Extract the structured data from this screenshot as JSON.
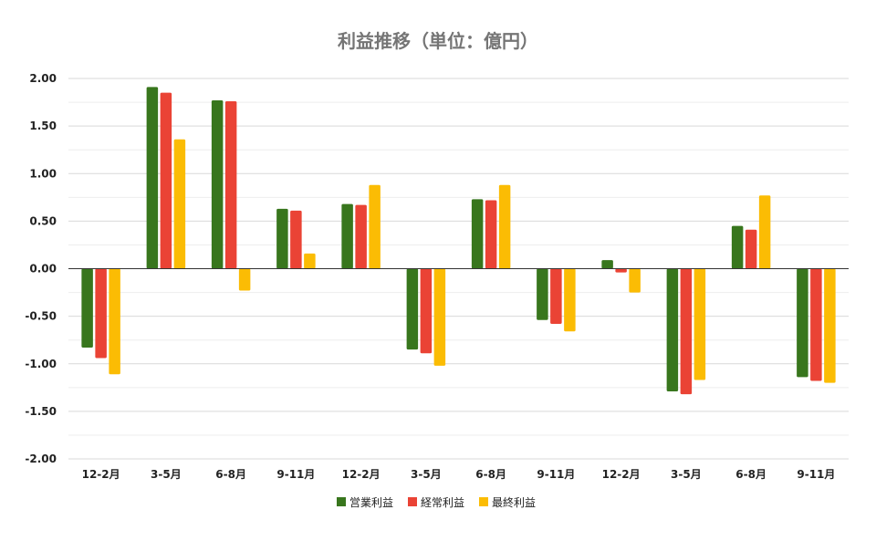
{
  "chart_data": {
    "type": "bar",
    "title": "利益推移（単位：億円）",
    "xlabel": "",
    "ylabel": "",
    "ylim": [
      -2.0,
      2.0
    ],
    "yticks": [
      "2.00",
      "1.50",
      "1.00",
      "0.50",
      "0.00",
      "-0.50",
      "-1.00",
      "-1.50",
      "-2.00"
    ],
    "grid": true,
    "legend_position": "bottom",
    "categories": [
      "12-2月",
      "3-5月",
      "6-8月",
      "9-11月",
      "12-2月",
      "3-5月",
      "6-8月",
      "9-11月",
      "12-2月",
      "3-5月",
      "6-8月",
      "9-11月"
    ],
    "series": [
      {
        "name": "営業利益",
        "color": "#38761d",
        "values": [
          -0.83,
          1.91,
          1.77,
          0.63,
          0.68,
          -0.85,
          0.73,
          -0.54,
          0.09,
          -1.29,
          0.45,
          -1.14
        ]
      },
      {
        "name": "経常利益",
        "color": "#ea4335",
        "values": [
          -0.94,
          1.85,
          1.76,
          0.61,
          0.67,
          -0.89,
          0.72,
          -0.58,
          -0.04,
          -1.32,
          0.41,
          -1.18
        ]
      },
      {
        "name": "最終利益",
        "color": "#fbbc04",
        "values": [
          -1.11,
          1.36,
          -0.23,
          0.16,
          0.88,
          -1.02,
          0.88,
          -0.66,
          -0.25,
          -1.17,
          0.77,
          -1.2
        ]
      }
    ]
  }
}
